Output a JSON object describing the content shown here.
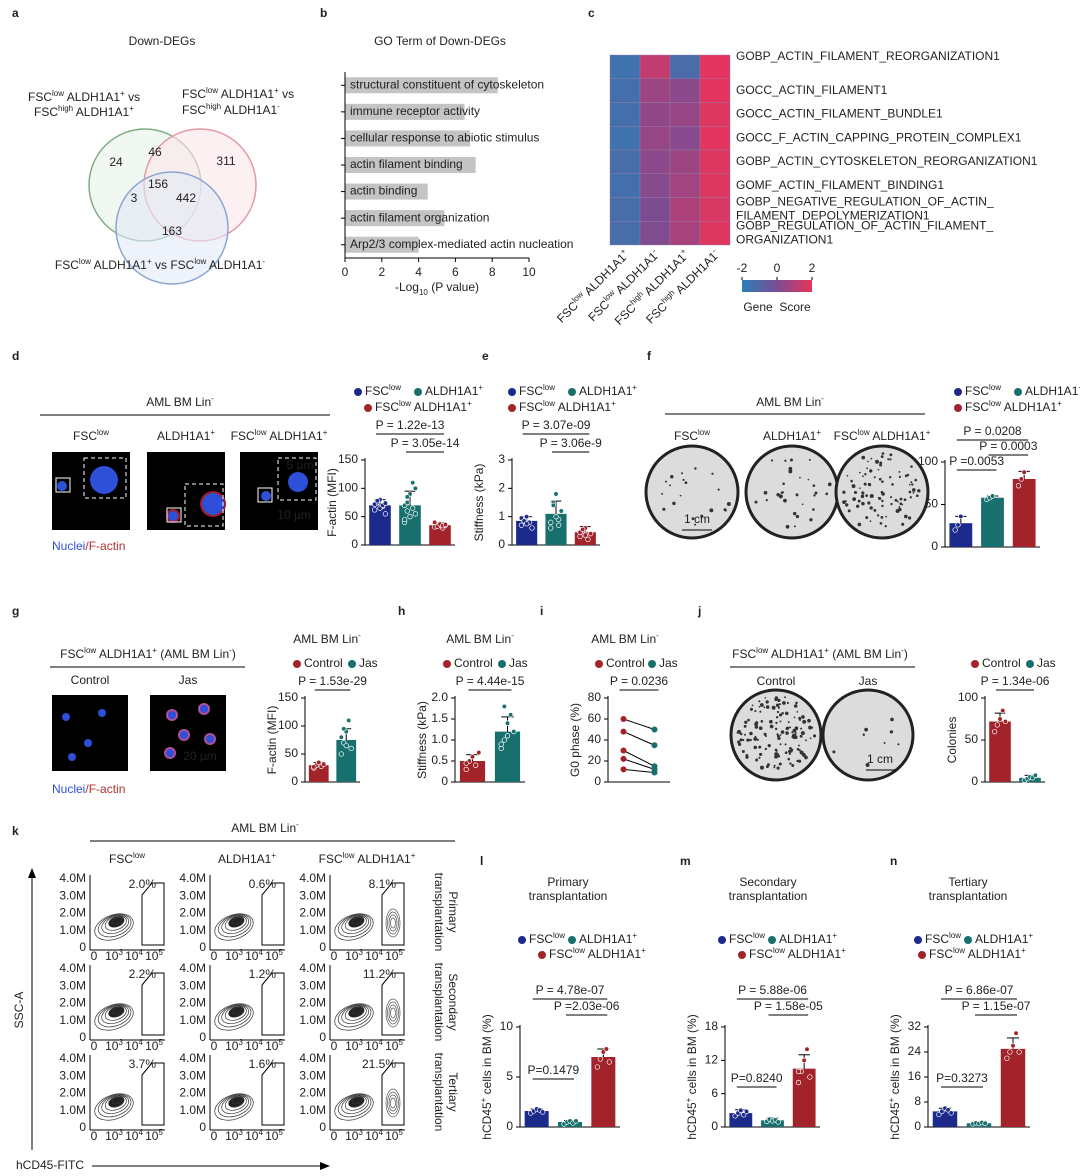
{
  "panel_letters": [
    "a",
    "b",
    "c",
    "d",
    "e",
    "f",
    "g",
    "h",
    "i",
    "j",
    "k",
    "l",
    "m",
    "n"
  ],
  "venn": {
    "title": "Down-DEGs",
    "labels": [
      [
        [
          "FSC",
          "low",
          " ALDH1A1",
          "+",
          " vs"
        ],
        [
          "FSC",
          "high",
          " ALDH1A1",
          "+"
        ]
      ],
      [
        [
          "FSC",
          "low",
          " ALDH1A1",
          "+",
          " vs"
        ],
        [
          "FSC",
          "high",
          " ALDH1A1",
          "-"
        ]
      ],
      [
        [
          "FSC",
          "low",
          " ALDH1A1",
          "+",
          " vs FSC",
          "low",
          " ALDH1A1",
          "-"
        ]
      ]
    ],
    "counts": [
      "24",
      "46",
      "311",
      "156",
      "3",
      "442",
      "163"
    ]
  },
  "panel_d": {
    "title": [
      "AML BM Lin",
      "-"
    ],
    "columns": [
      [
        "FSC",
        "low"
      ],
      [
        "ALDH1A1",
        "+"
      ],
      [
        "FSC",
        "low",
        " ALDH1A1",
        "+"
      ]
    ],
    "stain": [
      "Nuclei",
      "/F-actin"
    ],
    "scale_bars": [
      "5 µm",
      "10 µm"
    ]
  },
  "panel_f": {
    "title": [
      "AML BM Lin",
      "-"
    ],
    "columns": [
      [
        "FSC",
        "low"
      ],
      [
        "ALDH1A1",
        "+"
      ],
      [
        "FSC",
        "low",
        " ALDH1A1",
        "+"
      ]
    ],
    "scale_bar": "1 cm"
  },
  "panel_g": {
    "title": [
      "FSC",
      "low",
      " ALDH1A1",
      "+",
      " (AML BM Lin",
      "-",
      ")"
    ],
    "columns": [
      "Control",
      "Jas"
    ],
    "stain": [
      "Nuclei",
      "/F-actin"
    ],
    "scale_bar": "20 µm"
  },
  "panel_j": {
    "title": [
      "FSC",
      "low",
      " ALDH1A1",
      "+",
      " (AML BM Lin",
      "-",
      ")"
    ],
    "columns": [
      "Control",
      "Jas"
    ],
    "scale_bar": "1 cm"
  },
  "panel_k": {
    "title": [
      "AML BM Lin",
      "-"
    ],
    "columns": [
      [
        "FSC",
        "low"
      ],
      [
        "ALDH1A1",
        "+"
      ],
      [
        "FSC",
        "low",
        " ALDH1A1",
        "+"
      ]
    ],
    "rows": [
      [
        "Primary",
        "transplantation"
      ],
      [
        "Secondary",
        "transplantation"
      ],
      [
        "Tertiary",
        "transplantation"
      ]
    ],
    "percentages": [
      [
        "2.0%",
        "0.6%",
        "8.1%"
      ],
      [
        "2.2%",
        "1.2%",
        "11.2%"
      ],
      [
        "3.7%",
        "1.6%",
        "21.5%"
      ]
    ],
    "ytick_labels": [
      "4.0M",
      "3.0M",
      "2.0M",
      "1.0M",
      "0"
    ],
    "xtick_labels": [
      [
        "0"
      ],
      [
        "10",
        "3"
      ],
      [
        "10",
        "4"
      ],
      [
        "10",
        "5"
      ]
    ],
    "ylabel": "SSC-A",
    "xlabel": "hCD45-FITC"
  },
  "chart_data": [
    {
      "type": "hbar",
      "title": "GO Term of Down-DEGs",
      "categories": [
        "structural constituent of cytoskeleton",
        "immune receptor activity",
        "cellular response to abiotic stimulus",
        "actin filament binding",
        "actin binding",
        "actin filament organization",
        "Arp2/3 complex-mediated actin nucleation"
      ],
      "values": [
        8.3,
        6.5,
        6.8,
        7.1,
        4.5,
        5.4,
        4.0
      ],
      "color": "#c4c4c4",
      "xlim": [
        0,
        10
      ],
      "xticks": [
        0,
        2,
        4,
        6,
        8,
        10
      ],
      "xlabel": [
        "-Log",
        "10",
        " (P value)"
      ]
    },
    {
      "type": "heatmap",
      "rows": [
        [
          "GOBP_ACTIN_FILAMENT_REORGANIZATION1"
        ],
        [
          "GOCC_ACTIN_FILAMENT1"
        ],
        [
          "GOCC_ACTIN_FILAMENT_BUNDLE1"
        ],
        [
          "GOCC_F_ACTIN_CAPPING_PROTEIN_COMPLEX1"
        ],
        [
          "GOBP_ACTIN_CYTOSKELETON_REORGANIZATION1"
        ],
        [
          "GOMF_ACTIN_FILAMENT_BINDING1"
        ],
        [
          "GOBP_NEGATIVE_REGULATION_OF_ACTIN_",
          "FILAMENT_DEPOLYMERIZATION1"
        ],
        [
          "GOBP_REGULATION_OF_ACTIN_FILAMENT_",
          "ORGANIZATION1"
        ]
      ],
      "columns": [
        [
          "FSC",
          "low",
          " ALDH1A1",
          "+"
        ],
        [
          "FSC",
          "low",
          " ALDH1A1",
          "-"
        ],
        [
          "FSC",
          "high",
          " ALDH1A1",
          "+"
        ],
        [
          "FSC",
          "high",
          " ALDH1A1",
          "-"
        ]
      ],
      "values": [
        [
          -1.5,
          1.3,
          -1.2,
          1.9
        ],
        [
          -1.4,
          0.6,
          0.3,
          1.9
        ],
        [
          -1.4,
          0.4,
          0.5,
          1.8
        ],
        [
          -1.5,
          0.5,
          0.2,
          1.9
        ],
        [
          -1.3,
          0.3,
          0.6,
          1.8
        ],
        [
          -1.4,
          0.2,
          0.7,
          1.8
        ],
        [
          -1.3,
          0.0,
          0.9,
          1.7
        ],
        [
          -1.3,
          0.1,
          0.8,
          1.8
        ]
      ],
      "zlim": [
        -2,
        2
      ],
      "zticks": [
        -2,
        0,
        2
      ],
      "colors": [
        "#2b7fb8",
        "#7b4c92",
        "#e8345c"
      ],
      "colorbar_label": "Gene  Score"
    },
    {
      "type": "bar",
      "ylabel": [
        "F-actin (MFI)"
      ],
      "categories": [
        [
          "FSC",
          "low"
        ],
        [
          "ALDH1A1",
          "+"
        ],
        [
          "FSC",
          "low",
          " ALDH1A1",
          "+"
        ]
      ],
      "colors": [
        "#1c2a8c",
        "#17706e",
        "#a3232b"
      ],
      "values": [
        70,
        70,
        35
      ],
      "errors": [
        10,
        25,
        4
      ],
      "points": [
        [
          62,
          75,
          80,
          68,
          55,
          72,
          78,
          65,
          70,
          74
        ],
        [
          40,
          60,
          90,
          110,
          55,
          70,
          85,
          50,
          65,
          100,
          45,
          75
        ],
        [
          32,
          36,
          38,
          30,
          35,
          40,
          33,
          37,
          34,
          36
        ]
      ],
      "ylim": [
        0,
        150
      ],
      "yticks": [
        0,
        50,
        100,
        150
      ],
      "annotations": [
        "P = 1.22e-13",
        "P = 3.05e-14"
      ]
    },
    {
      "type": "bar",
      "ylabel": [
        "Stiffness (kPa)"
      ],
      "categories": [
        [
          "FSC",
          "low"
        ],
        [
          "ALDH1A1",
          "+"
        ],
        [
          "FSC",
          "low",
          " ALDH1A1",
          "+"
        ]
      ],
      "colors": [
        "#1c2a8c",
        "#17706e",
        "#a3232b"
      ],
      "values": [
        0.85,
        1.1,
        0.45
      ],
      "errors": [
        0.15,
        0.45,
        0.2
      ],
      "points": [
        [
          0.7,
          0.9,
          1.0,
          0.8,
          0.6,
          0.95,
          0.85,
          0.75
        ],
        [
          0.6,
          1.5,
          1.8,
          0.9,
          1.2,
          0.8,
          1.4,
          1.0,
          0.7
        ],
        [
          0.3,
          0.5,
          0.6,
          0.2,
          0.4,
          0.45,
          0.55,
          0.35
        ]
      ],
      "ylim": [
        0,
        3
      ],
      "yticks": [
        0,
        1,
        2,
        3
      ],
      "annotations": [
        "P = 3.07e-09",
        "P = 3.06e-9"
      ]
    },
    {
      "type": "bar",
      "ylabel": [
        "Colonies"
      ],
      "categories": [
        [
          "FSC",
          "low"
        ],
        [
          "ALDH1A1",
          "+"
        ],
        [
          "FSC",
          "low",
          " ALDH1A1",
          "+"
        ]
      ],
      "colors": [
        "#1c2a8c",
        "#17706e",
        "#a3232b"
      ],
      "values": [
        28,
        58,
        80
      ],
      "errors": [
        8,
        2,
        9
      ],
      "points": [
        [
          20,
          26,
          36
        ],
        [
          56,
          58,
          60
        ],
        [
          72,
          80,
          88
        ]
      ],
      "ylim": [
        0,
        100
      ],
      "yticks": [
        0,
        50,
        100
      ],
      "annotations": [
        "P = 0.0208",
        "P = 0.0003",
        "P =0.0053"
      ]
    },
    {
      "type": "bar",
      "title": [
        [
          "AML BM Lin",
          "-"
        ]
      ],
      "ylabel": [
        "F-actin (MFI)"
      ],
      "categories": [
        [
          "Control"
        ],
        [
          "Jas"
        ]
      ],
      "colors": [
        "#a3232b",
        "#17706e"
      ],
      "values": [
        30,
        75
      ],
      "errors": [
        5,
        20
      ],
      "points": [
        [
          25,
          30,
          35,
          28,
          32,
          27
        ],
        [
          50,
          70,
          90,
          110,
          60,
          80,
          95,
          65
        ]
      ],
      "ylim": [
        0,
        150
      ],
      "yticks": [
        0,
        50,
        100,
        150
      ],
      "annotations": [
        "P = 1.53e-29"
      ]
    },
    {
      "type": "bar",
      "title": [
        [
          "AML BM Lin",
          "-"
        ]
      ],
      "ylabel": [
        "Stiffness (kPa)"
      ],
      "categories": [
        [
          "Control"
        ],
        [
          "Jas"
        ]
      ],
      "colors": [
        "#a3232b",
        "#17706e"
      ],
      "values": [
        0.5,
        1.2
      ],
      "errors": [
        0.15,
        0.35
      ],
      "points": [
        [
          0.3,
          0.5,
          0.6,
          0.4,
          0.7,
          0.45
        ],
        [
          0.8,
          1.0,
          1.4,
          1.6,
          1.2,
          0.9,
          1.8,
          1.1
        ]
      ],
      "ylim": [
        0,
        2
      ],
      "yticks": [
        0,
        0.5,
        {
          "value": 1,
          "label": "1.0"
        },
        1.5,
        {
          "value": 2,
          "label": "2.0"
        }
      ],
      "annotations": [
        "P = 4.44e-15"
      ]
    },
    {
      "type": "paired",
      "title": [
        [
          "AML BM Lin",
          "-"
        ]
      ],
      "ylabel": [
        "G0 phase (%)"
      ],
      "categories": [
        [
          "Control"
        ],
        [
          "Jas"
        ]
      ],
      "colors": [
        "#a3232b",
        "#17706e"
      ],
      "values": [
        [
          60,
          50
        ],
        [
          48,
          35
        ],
        [
          30,
          15
        ],
        [
          22,
          12
        ],
        [
          12,
          9
        ]
      ],
      "ylim": [
        0,
        80
      ],
      "yticks": [
        0,
        20,
        40,
        60,
        80
      ],
      "annotations": [
        "P = 0.0236"
      ]
    },
    {
      "type": "bar",
      "ylabel": [
        "Colonies"
      ],
      "categories": [
        [
          "Control"
        ],
        [
          "Jas"
        ]
      ],
      "colors": [
        "#a3232b",
        "#17706e"
      ],
      "values": [
        72,
        5
      ],
      "errors": [
        10,
        3
      ],
      "points": [
        [
          60,
          68,
          75,
          85,
          72
        ],
        [
          2,
          4,
          6,
          5,
          8
        ]
      ],
      "ylim": [
        0,
        100
      ],
      "yticks": [
        0,
        50,
        100
      ],
      "annotations": [
        "P = 1.34e-06"
      ]
    },
    {
      "type": "bar",
      "title": [
        [
          "Primary"
        ],
        [
          "transplantation"
        ]
      ],
      "ylabel": [
        "hCD45",
        "+",
        " cells in BM (%)"
      ],
      "categories": [
        [
          "FSC",
          "low"
        ],
        [
          "ALDH1A1",
          "+"
        ],
        [
          "FSC",
          "low",
          " ALDH1A1",
          "+"
        ]
      ],
      "colors": [
        "#1c2a8c",
        "#17706e",
        "#a3232b"
      ],
      "values": [
        1.6,
        0.5,
        7.0
      ],
      "errors": [
        0.2,
        0.15,
        0.8
      ],
      "points": [
        [
          1.4,
          1.6,
          1.8,
          1.7,
          1.5
        ],
        [
          0.3,
          0.5,
          0.6,
          0.4,
          0.6
        ],
        [
          6.0,
          6.8,
          7.5,
          7.8,
          6.5
        ]
      ],
      "ylim": [
        0,
        10
      ],
      "yticks": [
        0,
        5,
        10
      ],
      "annotations": [
        "P = 4.78e-07",
        "P =2.03e-06",
        "P=0.1479"
      ]
    },
    {
      "type": "bar",
      "title": [
        [
          "Secondary"
        ],
        [
          "transplantation"
        ]
      ],
      "ylabel": [
        "hCD45",
        "+",
        " cells in BM (%)"
      ],
      "categories": [
        [
          "FSC",
          "low"
        ],
        [
          "ALDH1A1",
          "+"
        ],
        [
          "FSC",
          "low",
          " ALDH1A1",
          "+"
        ]
      ],
      "colors": [
        "#1c2a8c",
        "#17706e",
        "#a3232b"
      ],
      "values": [
        2.5,
        1.2,
        10.5
      ],
      "errors": [
        0.6,
        0.4,
        2.5
      ],
      "points": [
        [
          2,
          2.5,
          3,
          2.2,
          2.8
        ],
        [
          1,
          1.4,
          1.1,
          1.3,
          0.9
        ],
        [
          8,
          10,
          12,
          14,
          9,
          10
        ]
      ],
      "ylim": [
        0,
        18
      ],
      "yticks": [
        0,
        6,
        12,
        18
      ],
      "annotations": [
        "P = 5.88e-06",
        "P = 1.58e-05",
        "P=0.8240"
      ]
    },
    {
      "type": "bar",
      "title": [
        [
          "Tertiary"
        ],
        [
          "transplantation"
        ]
      ],
      "ylabel": [
        "hCD45",
        "+",
        " cells in BM (%)"
      ],
      "categories": [
        [
          "FSC",
          "low"
        ],
        [
          "ALDH1A1",
          "+"
        ],
        [
          "FSC",
          "low",
          " ALDH1A1",
          "+"
        ]
      ],
      "colors": [
        "#1c2a8c",
        "#17706e",
        "#a3232b"
      ],
      "values": [
        5,
        1.2,
        25
      ],
      "errors": [
        1,
        0.3,
        3.5
      ],
      "points": [
        [
          4,
          5,
          6,
          5.5,
          4.5
        ],
        [
          1,
          1.3,
          1.1,
          1.4,
          1.2
        ],
        [
          22,
          24,
          26,
          30,
          24
        ]
      ],
      "ylim": [
        0,
        32
      ],
      "yticks": [
        0,
        8,
        16,
        24,
        32
      ],
      "annotations": [
        "P = 6.86e-07",
        "P = 1.15e-07",
        "P=0.3273"
      ]
    }
  ]
}
